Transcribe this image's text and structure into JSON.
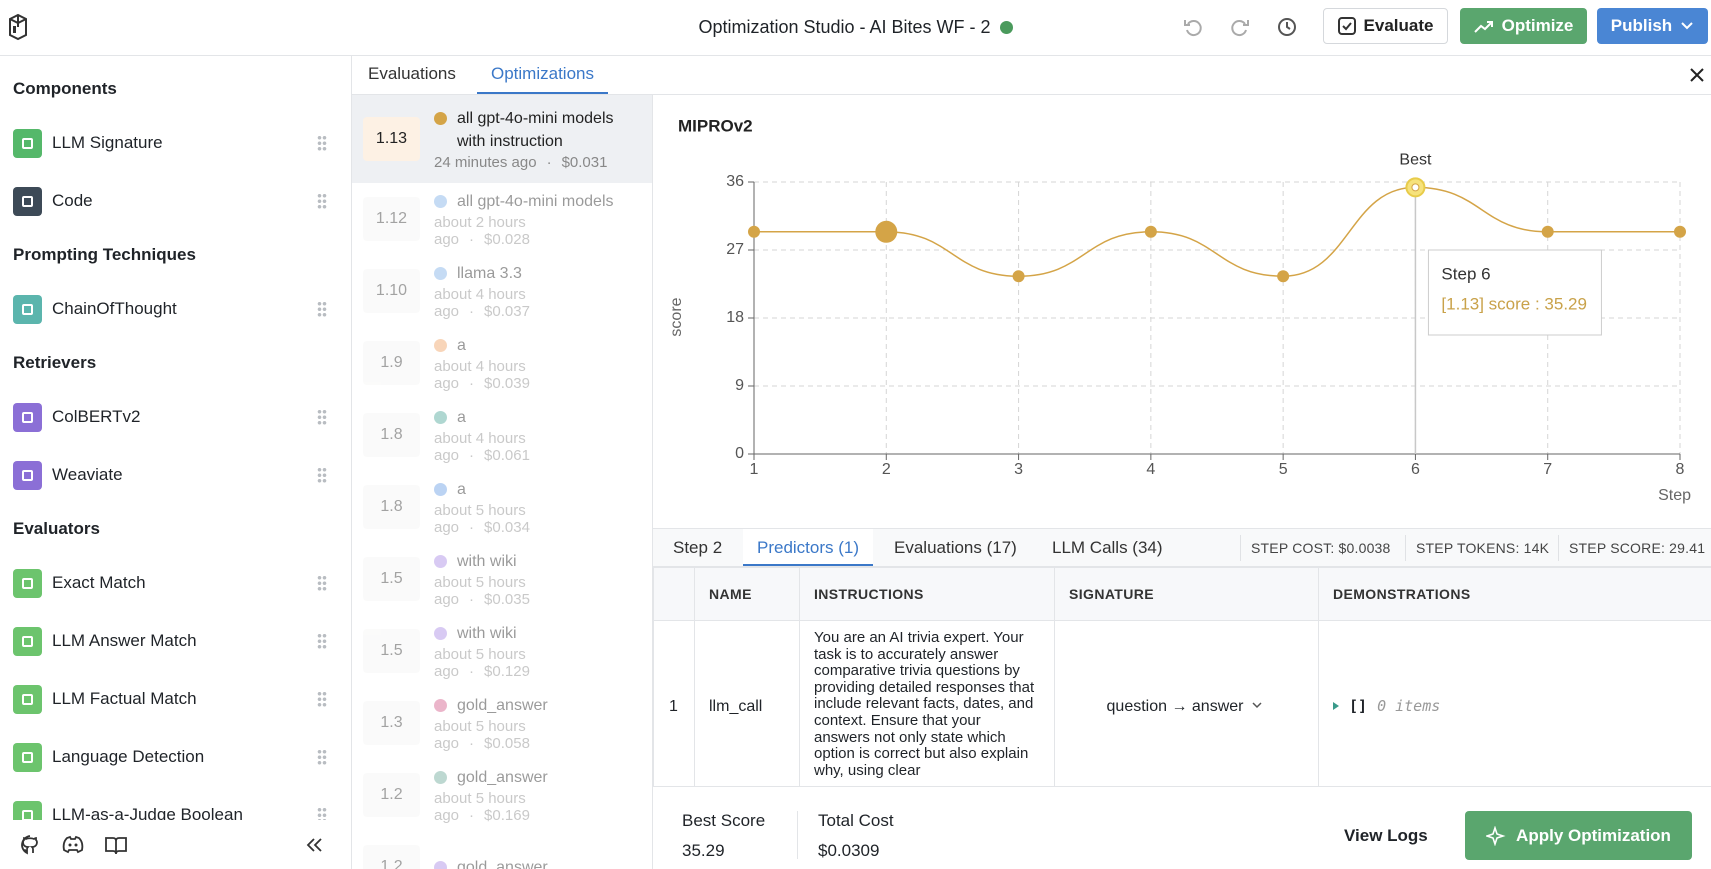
{
  "header": {
    "title": "Optimization Studio - AI Bites WF - 2",
    "evaluate": "Evaluate",
    "optimize": "Optimize",
    "publish": "Publish"
  },
  "sidebar": {
    "sections": [
      {
        "title": "Components",
        "items": [
          {
            "label": "LLM Signature",
            "color": "#55b86a"
          },
          {
            "label": "Code",
            "color": "#3d4a57"
          }
        ]
      },
      {
        "title": "Prompting Techniques",
        "items": [
          {
            "label": "ChainOfThought",
            "color": "#5bb5ad"
          }
        ]
      },
      {
        "title": "Retrievers",
        "items": [
          {
            "label": "ColBERTv2",
            "color": "#8b6fd6"
          },
          {
            "label": "Weaviate",
            "color": "#8b6fd6"
          }
        ]
      },
      {
        "title": "Evaluators",
        "items": [
          {
            "label": "Exact Match",
            "color": "#6cc46d"
          },
          {
            "label": "LLM Answer Match",
            "color": "#6cc46d"
          },
          {
            "label": "LLM Factual Match",
            "color": "#6cc46d"
          },
          {
            "label": "Language Detection",
            "color": "#6cc46d"
          },
          {
            "label": "LLM-as-a-Judge Boolean",
            "color": "#6cc46d"
          }
        ]
      }
    ]
  },
  "tabs": {
    "items": [
      "Evaluations",
      "Optimizations"
    ]
  },
  "run_list": {
    "separator": "·",
    "items": [
      {
        "version": "1.13",
        "name": "all gpt-4o-mini models with instruction",
        "time": "24 minutes ago",
        "cost": "$0.031",
        "color": "#d4a447"
      },
      {
        "version": "1.12",
        "name": "all gpt-4o-mini models",
        "time": "about 2 hours ago",
        "cost": "$0.028",
        "color": "#7fb0e8"
      },
      {
        "version": "1.10",
        "name": "llama 3.3",
        "time": "about 4 hours ago",
        "cost": "$0.037",
        "color": "#7fb0e8"
      },
      {
        "version": "1.9",
        "name": "a",
        "time": "about 4 hours ago",
        "cost": "$0.039",
        "color": "#f0a366"
      },
      {
        "version": "1.8",
        "name": "a",
        "time": "about 4 hours ago",
        "cost": "$0.061",
        "color": "#4fa79a"
      },
      {
        "version": "1.8",
        "name": "a",
        "time": "about 5 hours ago",
        "cost": "$0.034",
        "color": "#6aa0e6"
      },
      {
        "version": "1.5",
        "name": "with wiki",
        "time": "about 5 hours ago",
        "cost": "$0.035",
        "color": "#a98be6"
      },
      {
        "version": "1.5",
        "name": "with wiki",
        "time": "about 5 hours ago",
        "cost": "$0.129",
        "color": "#a98be6"
      },
      {
        "version": "1.3",
        "name": "gold_answer",
        "time": "about 5 hours ago",
        "cost": "$0.058",
        "color": "#d45d8c"
      },
      {
        "version": "1.2",
        "name": "gold_answer",
        "time": "about 5 hours ago",
        "cost": "$0.169",
        "color": "#6fa99a"
      },
      {
        "version": "1.2",
        "name": "gold_answer",
        "color": "#a98be6"
      }
    ]
  },
  "chart_data": {
    "type": "line",
    "title": "MIPROv2",
    "x": [
      1,
      2,
      3,
      4,
      5,
      6,
      7,
      8
    ],
    "values": [
      29.41,
      29.41,
      23.53,
      29.41,
      23.53,
      35.29,
      29.41,
      29.41
    ],
    "color": "#d4a447",
    "xlim": [
      1,
      8
    ],
    "ylim": [
      0,
      36
    ],
    "xticks": [
      1,
      2,
      3,
      4,
      5,
      6,
      7,
      8
    ],
    "yticks": [
      0,
      9,
      18,
      27,
      36
    ],
    "xlabel": "Step",
    "ylabel": "score",
    "grid": true,
    "annotation": "Best",
    "tooltip": {
      "title": "Step 6",
      "text": "[1.13] score : 35.29"
    }
  },
  "step_panel": {
    "step": "Step 2",
    "tabs": [
      "Predictors (1)",
      "Evaluations (17)",
      "LLM Calls (34)"
    ],
    "stats": [
      "STEP COST: $0.0038",
      "STEP TOKENS: 14K",
      "STEP SCORE: 29.41"
    ]
  },
  "table": {
    "columns": [
      "NAME",
      "INSTRUCTIONS",
      "SIGNATURE",
      "DEMONSTRATIONS"
    ],
    "rows": [
      {
        "index": "1",
        "name": "llm_call",
        "instructions": "You are an AI trivia expert. Your task is to accurately answer comparative trivia questions by providing detailed responses that include relevant facts, dates, and context. Ensure that your answers not only state which option is correct but also explain why, using clear",
        "signature": "question → answer",
        "demonstrations": "[]",
        "demonstrations_count": "0 items"
      }
    ]
  },
  "footer": {
    "best_score_label": "Best Score",
    "best_score": "35.29",
    "total_cost_label": "Total Cost",
    "total_cost": "$0.0309",
    "view_logs": "View Logs",
    "apply": "Apply Optimization"
  }
}
